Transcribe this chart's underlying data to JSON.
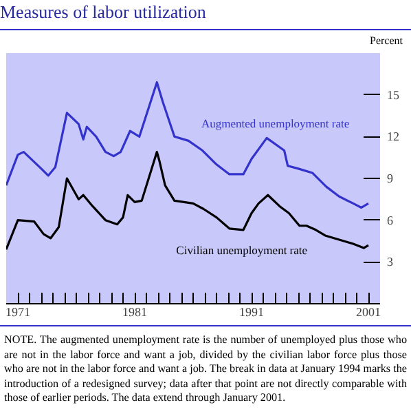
{
  "chart_data": {
    "type": "line",
    "title": "Measures of labor utilization",
    "ylabel": "Percent",
    "xlim": [
      1970,
      2002
    ],
    "ylim": [
      0,
      18
    ],
    "xticks": [
      1971,
      {
        "value": 1972,
        "label": null
      },
      {
        "value": 1973,
        "label": null
      },
      {
        "value": 1974,
        "label": null
      },
      {
        "value": 1975,
        "label": null
      },
      {
        "value": 1976,
        "label": null
      },
      {
        "value": 1977,
        "label": null
      },
      {
        "value": 1978,
        "label": null
      },
      {
        "value": 1979,
        "label": null
      },
      {
        "value": 1980,
        "label": null
      },
      1981,
      {
        "value": 1982,
        "label": null
      },
      {
        "value": 1983,
        "label": null
      },
      {
        "value": 1984,
        "label": null
      },
      {
        "value": 1985,
        "label": null
      },
      {
        "value": 1986,
        "label": null
      },
      {
        "value": 1987,
        "label": null
      },
      {
        "value": 1988,
        "label": null
      },
      {
        "value": 1989,
        "label": null
      },
      {
        "value": 1990,
        "label": null
      },
      1991,
      {
        "value": 1992,
        "label": null
      },
      {
        "value": 1993,
        "label": null
      },
      {
        "value": 1994,
        "label": null
      },
      {
        "value": 1995,
        "label": null
      },
      {
        "value": 1996,
        "label": null
      },
      {
        "value": 1997,
        "label": null
      },
      {
        "value": 1998,
        "label": null
      },
      {
        "value": 1999,
        "label": null
      },
      {
        "value": 2000,
        "label": null
      },
      2001
    ],
    "yticks": [
      3,
      6,
      9,
      12,
      15
    ],
    "grid": false,
    "series": [
      {
        "name": "Augmented unemployment rate",
        "color": "#3333cc",
        "x": [
          1970.0,
          1971.0,
          1971.5,
          1973.0,
          1973.6,
          1974.2,
          1975.2,
          1976.2,
          1976.6,
          1976.9,
          1977.7,
          1978.5,
          1979.2,
          1979.8,
          1980.6,
          1981.4,
          1982.9,
          1983.4,
          1984.4,
          1985.6,
          1986.8,
          1988.0,
          1989.1,
          1990.3,
          1991.0,
          1992.3,
          1993.8,
          1994.1,
          1995.0,
          1996.2,
          1997.4,
          1998.5,
          1999.7,
          2000.4,
          2001.0
        ],
        "values": [
          8.5,
          10.7,
          10.9,
          9.7,
          9.2,
          9.8,
          13.7,
          12.9,
          11.8,
          12.7,
          12.0,
          10.9,
          10.6,
          10.9,
          12.4,
          12.0,
          15.9,
          14.5,
          12.0,
          11.7,
          11.0,
          10.0,
          9.3,
          9.3,
          10.4,
          11.9,
          11.0,
          9.9,
          9.7,
          9.4,
          8.4,
          7.7,
          7.2,
          6.9,
          7.2
        ]
      },
      {
        "name": "Civilian unemployment rate",
        "color": "#000000",
        "x": [
          1970.0,
          1971.0,
          1972.4,
          1973.2,
          1973.8,
          1974.5,
          1975.2,
          1976.2,
          1976.6,
          1977.4,
          1978.5,
          1979.5,
          1980.0,
          1980.4,
          1981.0,
          1981.6,
          1982.9,
          1983.1,
          1983.6,
          1984.4,
          1986.0,
          1986.9,
          1988.0,
          1989.1,
          1990.3,
          1991.0,
          1991.6,
          1992.4,
          1993.4,
          1994.2,
          1995.1,
          1995.7,
          1996.5,
          1997.3,
          1998.5,
          1999.7,
          2000.6,
          2001.0
        ],
        "values": [
          3.9,
          6.0,
          5.9,
          5.0,
          4.7,
          5.5,
          9.0,
          7.5,
          7.8,
          7.0,
          6.0,
          5.7,
          6.2,
          7.8,
          7.3,
          7.4,
          10.9,
          10.3,
          8.5,
          7.4,
          7.2,
          6.8,
          6.2,
          5.4,
          5.3,
          6.5,
          7.2,
          7.8,
          7.0,
          6.5,
          5.6,
          5.6,
          5.3,
          4.9,
          4.6,
          4.3,
          4.0,
          4.2
        ]
      }
    ],
    "annotations": [
      "NOTE. The augmented unemployment rate is the number of unemployed plus those who are not in the labor force and want a job, divided by the civilian labor force plus those who are not in the labor force and want a job. The break in data at January 1994 marks the introduction of a redesigned survey; data after that point are not directly comparable with those of earlier periods. The data extend through January 2001."
    ]
  }
}
